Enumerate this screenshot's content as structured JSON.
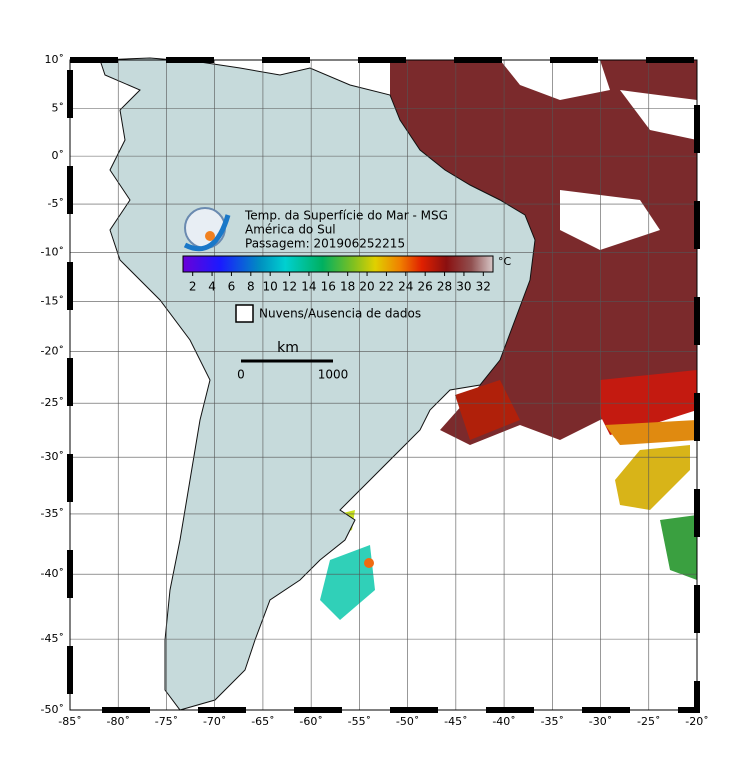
{
  "map": {
    "title_lines": [
      "Temp. da Superfície do Mar - MSG",
      "América do Sul",
      "Passagem: 201906252215"
    ],
    "colorbar": {
      "unit": "°C",
      "ticks": [
        2,
        4,
        6,
        8,
        10,
        12,
        14,
        16,
        18,
        20,
        22,
        24,
        26,
        28,
        30,
        32
      ]
    },
    "legend": "Nuvens/Ausencia de dados",
    "scale_bar": {
      "unit": "km",
      "start": "0",
      "end": "1000"
    },
    "longitude_labels": [
      {
        "value": -85,
        "label": "-85˚"
      },
      {
        "value": -80,
        "label": "-80˚"
      },
      {
        "value": -75,
        "label": "-75˚"
      },
      {
        "value": -70,
        "label": "-70˚"
      },
      {
        "value": -65,
        "label": "-65˚"
      },
      {
        "value": -60,
        "label": "-60˚"
      },
      {
        "value": -55,
        "label": "-55˚"
      },
      {
        "value": -50,
        "label": "-50˚"
      },
      {
        "value": -45,
        "label": "-45˚"
      },
      {
        "value": -40,
        "label": "-40˚"
      },
      {
        "value": -35,
        "label": "-35˚"
      },
      {
        "value": -30,
        "label": "-30˚"
      },
      {
        "value": -25,
        "label": "-25˚"
      },
      {
        "value": -20,
        "label": "-20˚"
      }
    ],
    "latitude_labels": [
      {
        "value": 10,
        "label": "10˚"
      },
      {
        "value": 5,
        "label": "5˚"
      },
      {
        "value": 0,
        "label": "0˚"
      },
      {
        "value": -5,
        "label": "-5˚"
      },
      {
        "value": -10,
        "label": "-10˚"
      },
      {
        "value": -15,
        "label": "-15˚"
      },
      {
        "value": -20,
        "label": "-20˚"
      },
      {
        "value": -25,
        "label": "-25˚"
      },
      {
        "value": -30,
        "label": "-30˚"
      },
      {
        "value": -35,
        "label": "-35˚"
      },
      {
        "value": -40,
        "label": "-40˚"
      },
      {
        "value": -45,
        "label": "-45˚"
      },
      {
        "value": -50,
        "label": "-50˚"
      }
    ]
  }
}
